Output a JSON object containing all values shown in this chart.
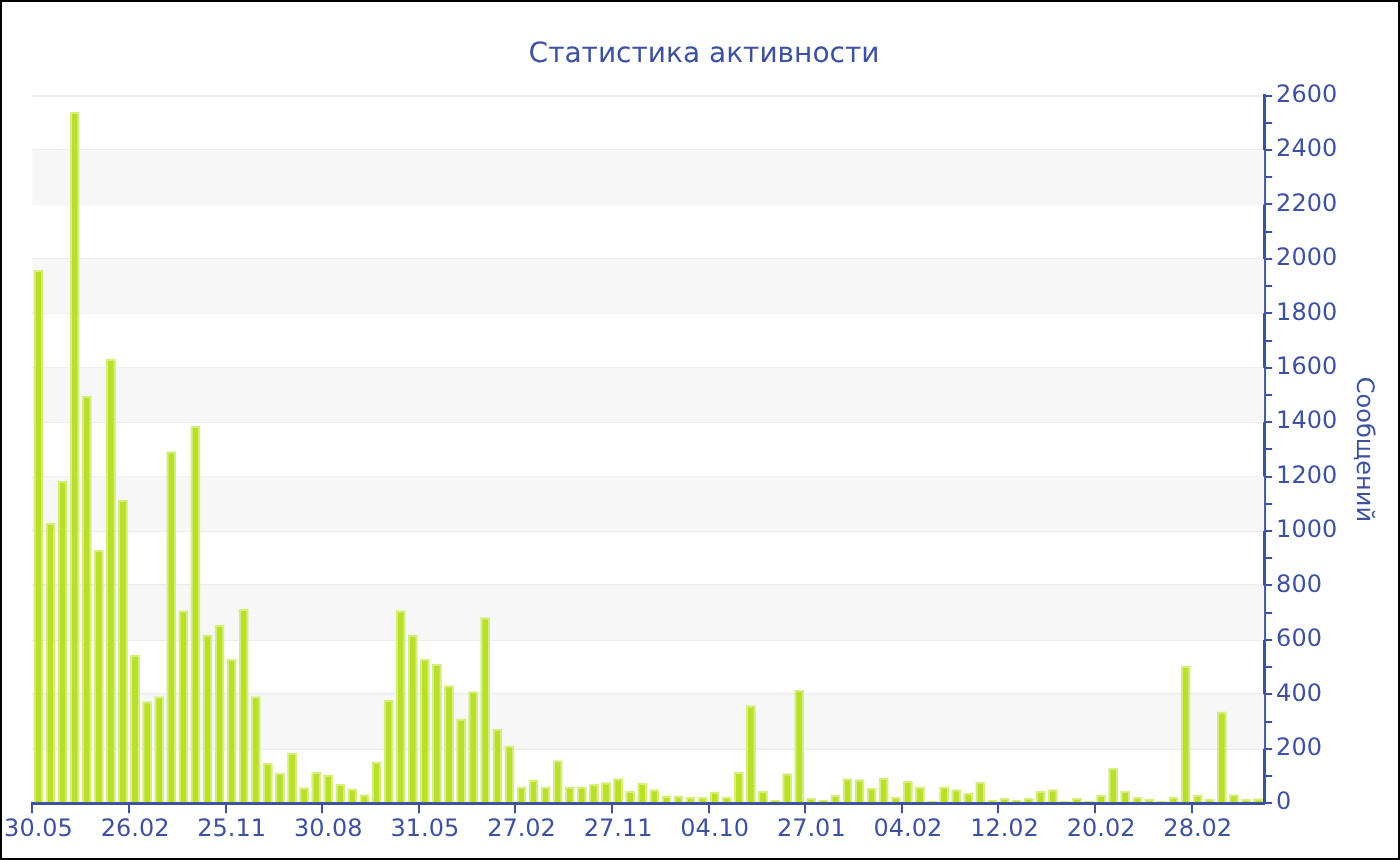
{
  "chart_data": {
    "type": "bar",
    "title": "Статистика активности",
    "ylabel": "Сообщений",
    "categories": [
      "30.05",
      null,
      null,
      null,
      null,
      null,
      null,
      null,
      "26.02",
      null,
      null,
      null,
      null,
      null,
      null,
      null,
      "25.11",
      null,
      null,
      null,
      null,
      null,
      null,
      null,
      "30.08",
      null,
      null,
      null,
      null,
      null,
      null,
      null,
      "31.05",
      null,
      null,
      null,
      null,
      null,
      null,
      null,
      "27.02",
      null,
      null,
      null,
      null,
      null,
      null,
      null,
      "27.11",
      null,
      null,
      null,
      null,
      null,
      null,
      null,
      "04.10",
      null,
      null,
      null,
      null,
      null,
      null,
      null,
      "27.01",
      null,
      null,
      null,
      null,
      null,
      null,
      null,
      "04.02",
      null,
      null,
      null,
      null,
      null,
      null,
      null,
      "12.02",
      null,
      null,
      null,
      null,
      null,
      null,
      null,
      "20.02",
      null,
      null,
      null,
      null,
      null,
      null,
      null,
      "28.02",
      null,
      null,
      null,
      null,
      null
    ],
    "values": [
      1960,
      1030,
      1185,
      2540,
      1497,
      930,
      1633,
      1115,
      545,
      375,
      393,
      1293,
      709,
      1387,
      620,
      656,
      530,
      714,
      393,
      148,
      112,
      184,
      59,
      115,
      105,
      71,
      54,
      33,
      153,
      380,
      709,
      620,
      530,
      512,
      433,
      311,
      411,
      683,
      273,
      212,
      61,
      87,
      61,
      158,
      61,
      61,
      71,
      77,
      92,
      46,
      74,
      51,
      28,
      28,
      23,
      23,
      43,
      25,
      115,
      360,
      46,
      13,
      110,
      416,
      20,
      13,
      31,
      92,
      88,
      56,
      94,
      23,
      82,
      61,
      8,
      61,
      51,
      38,
      79,
      13,
      20,
      13,
      20,
      46,
      51,
      8,
      20,
      8,
      31,
      130,
      46,
      23,
      15,
      8,
      23,
      505,
      31,
      15,
      337,
      33,
      15,
      18
    ],
    "color": "#b8e02a",
    "ylim": [
      0,
      2600
    ],
    "yticks": [
      0,
      {
        "value": 100,
        "label": null
      },
      200,
      {
        "value": 300,
        "label": null
      },
      400,
      {
        "value": 500,
        "label": null
      },
      600,
      {
        "value": 700,
        "label": null
      },
      800,
      {
        "value": 900,
        "label": null
      },
      1000,
      {
        "value": 1100,
        "label": null
      },
      1200,
      {
        "value": 1300,
        "label": null
      },
      1400,
      {
        "value": 1500,
        "label": null
      },
      1600,
      {
        "value": 1700,
        "label": null
      },
      1800,
      {
        "value": 1900,
        "label": null
      },
      2000,
      {
        "value": 2100,
        "label": null
      },
      2200,
      {
        "value": 2300,
        "label": null
      },
      2400,
      {
        "value": 2500,
        "label": null
      },
      2600
    ],
    "grid": "y",
    "legend": false
  }
}
